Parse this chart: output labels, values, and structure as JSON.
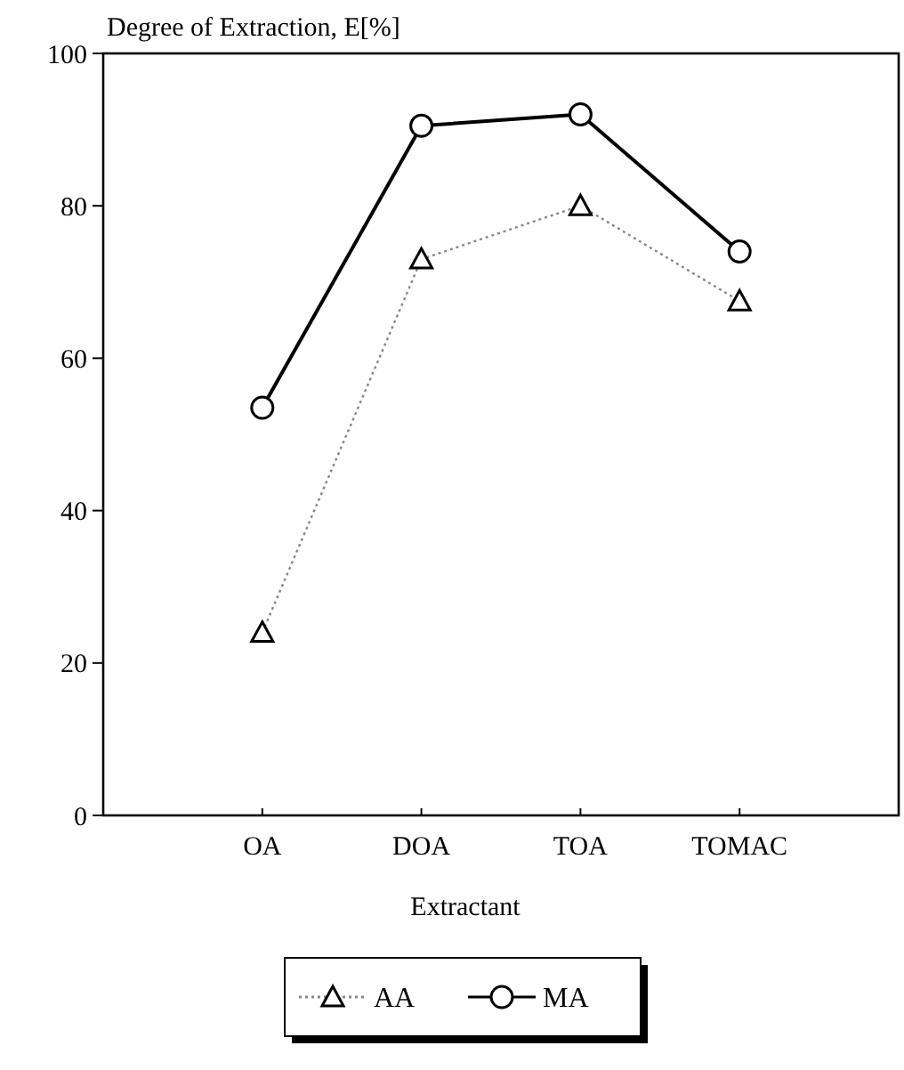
{
  "chart_data": {
    "type": "line",
    "ylabel": "Degree of Extraction, E[%]",
    "xlabel": "Extractant",
    "categories": [
      "OA",
      "DOA",
      "TOA",
      "TOMAC"
    ],
    "series": [
      {
        "name": "AA",
        "color": "#888888",
        "values": [
          24,
          73,
          80,
          67.5
        ],
        "marker": "triangle",
        "line_style": "dotted"
      },
      {
        "name": "MA",
        "color": "#000000",
        "values": [
          53.5,
          90.5,
          92,
          74
        ],
        "marker": "circle",
        "line_style": "solid"
      }
    ],
    "ylim": [
      0,
      100
    ],
    "yticks": [
      0,
      20,
      40,
      60,
      80,
      100
    ],
    "legend": "bottom",
    "grid": false
  }
}
